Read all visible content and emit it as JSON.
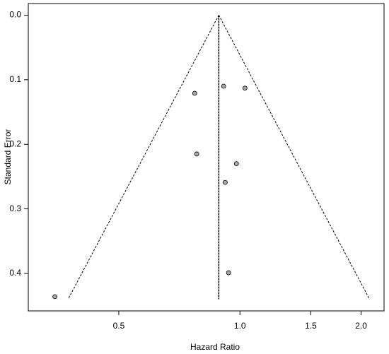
{
  "chart_data": {
    "type": "funnel",
    "x_label": "Hazard Ratio",
    "y_label": "Standard Error",
    "x": [
      0.772,
      0.911,
      1.029,
      0.781,
      0.98,
      0.919,
      0.937,
      0.347
    ],
    "y": [
      0.121,
      0.11,
      0.113,
      0.215,
      0.23,
      0.259,
      0.399,
      0.436
    ],
    "center": 0.886,
    "funnel_se_max": 0.44,
    "ci_z": 1.96,
    "xlim": [
      0.298,
      2.28
    ],
    "x_log": true,
    "xticks": [
      {
        "value": 0.5,
        "label": "0.5"
      },
      {
        "value": 1,
        "label": "1.0"
      },
      {
        "value": 1.5,
        "label": "1.5"
      },
      {
        "value": 2,
        "label": "2.0"
      }
    ],
    "ylim": [
      0.458,
      -0.018
    ],
    "yticks": [
      {
        "value": 0,
        "label": "0.0"
      },
      {
        "value": 0.1,
        "label": "0.1"
      },
      {
        "value": 0.2,
        "label": "0.2"
      },
      {
        "value": 0.3,
        "label": "0.3"
      },
      {
        "value": 0.4,
        "label": "0.4"
      }
    ],
    "point_color": "#a9a9a9"
  }
}
